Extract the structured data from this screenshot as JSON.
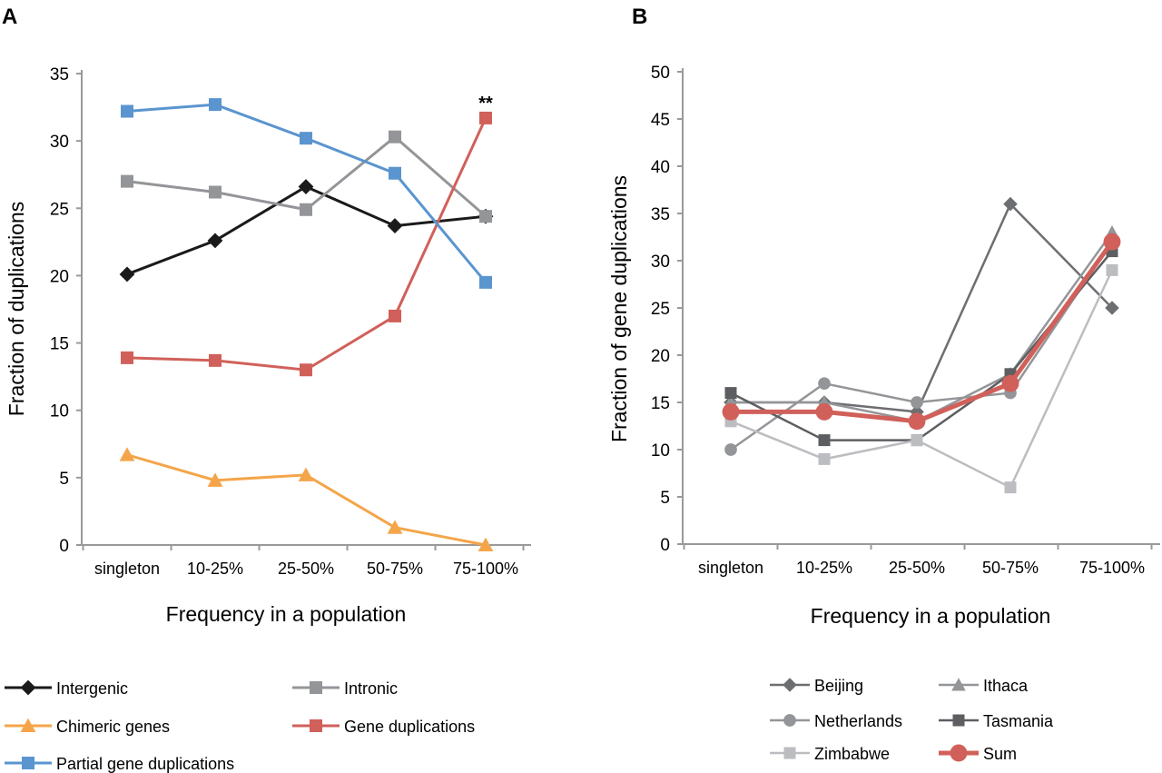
{
  "chart_data": [
    {
      "panel": "A",
      "type": "line",
      "categories": [
        "singleton",
        "10-25%",
        "25-50%",
        "50-75%",
        "75-100%"
      ],
      "xlabel": "Frequency in a population",
      "ylabel": "Fraction of duplications",
      "ylim": [
        0,
        35
      ],
      "yticks": [
        0,
        5,
        10,
        15,
        20,
        25,
        30,
        35
      ],
      "annotation": "**",
      "series": [
        {
          "name": "Intergenic",
          "marker": "diamond",
          "color": "#1a1a1a",
          "values": [
            20.1,
            22.6,
            26.6,
            23.7,
            24.4
          ]
        },
        {
          "name": "Intronic",
          "marker": "square",
          "color": "#939598",
          "values": [
            27.0,
            26.2,
            24.9,
            30.3,
            24.4
          ]
        },
        {
          "name": "Chimeric genes",
          "marker": "triangle",
          "color": "#f4a54a",
          "values": [
            6.7,
            4.8,
            5.2,
            1.3,
            0.0
          ]
        },
        {
          "name": "Gene duplications",
          "marker": "square",
          "color": "#d1605a",
          "values": [
            13.9,
            13.7,
            13.0,
            17.0,
            31.7
          ]
        },
        {
          "name": "Partial gene duplications",
          "marker": "square",
          "color": "#5a95cf",
          "values": [
            32.2,
            32.7,
            30.2,
            27.6,
            19.5
          ]
        }
      ]
    },
    {
      "panel": "B",
      "type": "line",
      "categories": [
        "singleton",
        "10-25%",
        "25-50%",
        "50-75%",
        "75-100%"
      ],
      "xlabel": "Frequency in a population",
      "ylabel": "Fraction of gene duplications",
      "ylim": [
        0,
        50
      ],
      "yticks": [
        0,
        5,
        10,
        15,
        20,
        25,
        30,
        35,
        40,
        45,
        50
      ],
      "series": [
        {
          "name": "Beijing",
          "marker": "diamond",
          "color": "#6d6e71",
          "values": [
            15,
            15,
            14,
            36,
            25
          ]
        },
        {
          "name": "Ithaca",
          "marker": "triangle",
          "color": "#939598",
          "values": [
            15,
            15,
            13,
            18,
            33
          ]
        },
        {
          "name": "Netherlands",
          "marker": "circle",
          "color": "#939598",
          "values": [
            10,
            17,
            15,
            16,
            32
          ]
        },
        {
          "name": "Tasmania",
          "marker": "square",
          "color": "#5d5e61",
          "values": [
            16,
            11,
            11,
            18,
            31
          ]
        },
        {
          "name": "Zimbabwe",
          "marker": "square",
          "color": "#bcbdc0",
          "values": [
            13,
            9,
            11,
            6,
            29
          ]
        },
        {
          "name": "Sum",
          "marker": "circle",
          "color": "#d1605a",
          "values": [
            14,
            14,
            13,
            17,
            32
          ],
          "thick": true
        }
      ]
    }
  ],
  "panel_labels": [
    "A",
    "B"
  ]
}
